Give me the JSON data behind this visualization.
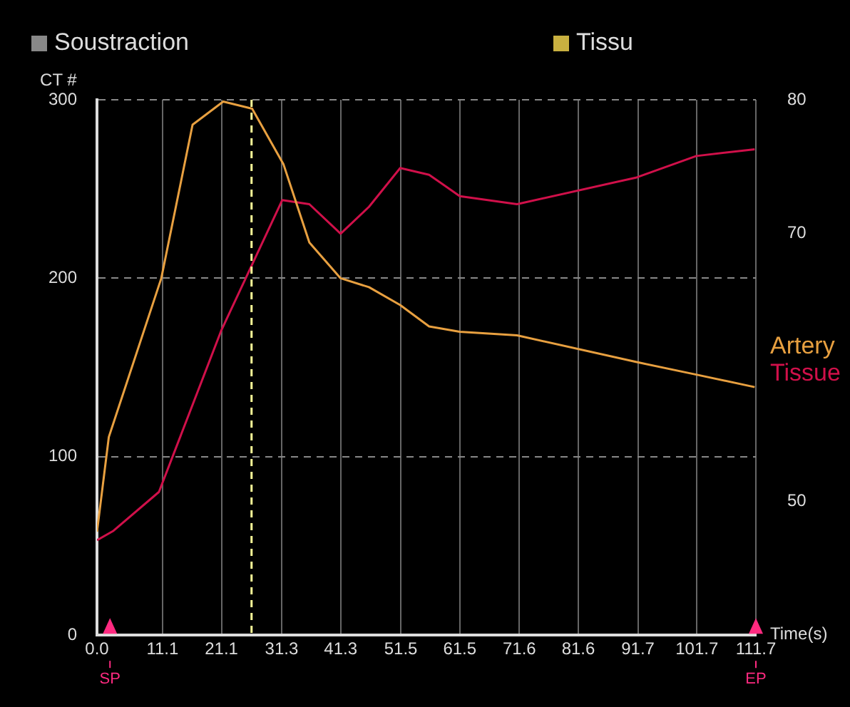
{
  "chart_data": {
    "type": "line",
    "xlabel": "Time(s)",
    "ylabel": "CT #",
    "annotations": [
      "Soustraction",
      "Tissu"
    ],
    "xlim": [
      0,
      111.7
    ],
    "xticks": [
      {
        "value": 0,
        "label": "0.0"
      },
      11.1,
      21.1,
      31.3,
      41.3,
      51.5,
      61.5,
      71.6,
      81.6,
      91.7,
      101.7,
      111.7
    ],
    "ylim": [
      0,
      300
    ],
    "yticks": [
      0,
      100,
      200,
      300
    ],
    "y2lim": [
      40,
      80
    ],
    "y2ticks": [
      50,
      70,
      80
    ],
    "grid": true,
    "legend": "right",
    "marker": "none",
    "line_style": "solid",
    "ref_lines": [
      {
        "axis": "x",
        "value": 26.2,
        "color": "#ffff99",
        "line_style": "dashed"
      },
      {
        "axis": "x",
        "value": 2.2,
        "label": "SP",
        "color": "#ff2a80"
      },
      {
        "axis": "x",
        "value": 111.7,
        "label": "EP",
        "color": "#ff2a80"
      }
    ],
    "series": [
      {
        "name": "Artery",
        "color": "#e8a040",
        "x": [
          0,
          2.0,
          10.9,
          16.2,
          21.4,
          26.3,
          31.6,
          36.0,
          41.3,
          46.1,
          51.4,
          56.3,
          61.5,
          71.2,
          91.5,
          101.6,
          111.5
        ],
        "values": [
          58,
          111,
          200,
          286,
          299,
          295,
          264,
          220,
          200,
          195,
          185,
          173,
          170,
          168,
          153,
          146,
          139
        ]
      },
      {
        "name": "Tissue",
        "color": "#d0104a",
        "axis": "y2",
        "x": [
          0,
          2.8,
          10.5,
          21.1,
          31.4,
          36.0,
          41.3,
          46.1,
          51.4,
          56.3,
          61.5,
          71.2,
          91.5,
          101.6,
          111.5
        ],
        "values": [
          47.1,
          47.8,
          50.7,
          62.8,
          72.5,
          72.2,
          70.0,
          72.0,
          74.9,
          74.4,
          72.8,
          72.2,
          74.2,
          75.8,
          76.3
        ]
      }
    ]
  }
}
